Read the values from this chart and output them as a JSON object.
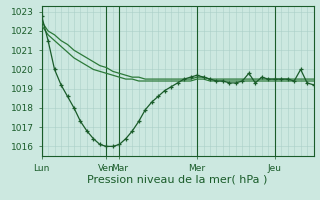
{
  "background_color": "#cce8e0",
  "grid_color": "#aacfc8",
  "line_color_dark": "#1a5c2a",
  "line_color_mid": "#2d7a3a",
  "ylim": [
    1015.5,
    1023.3
  ],
  "yticks": [
    1016,
    1017,
    1018,
    1019,
    1020,
    1021,
    1022,
    1023
  ],
  "xlabel": "Pression niveau de la mer( hPa )",
  "xlabel_fontsize": 8,
  "tick_fontsize": 6.5,
  "day_labels": [
    "Lun",
    "Ven",
    "Mar",
    "Mer",
    "Jeu"
  ],
  "day_positions": [
    0,
    60,
    72,
    144,
    216
  ],
  "total_steps": 252,
  "line_top_x": [
    0,
    6,
    12,
    18,
    24,
    30,
    36,
    42,
    48,
    54,
    60,
    66,
    72,
    78,
    84,
    90,
    96,
    102,
    108,
    114,
    120,
    126,
    132,
    138,
    144,
    150,
    156,
    162,
    168,
    174,
    180,
    186,
    192,
    198,
    204,
    210,
    216,
    222,
    228,
    234,
    240,
    246,
    252
  ],
  "line_top_y": [
    1022.5,
    1022.0,
    1021.8,
    1021.5,
    1021.3,
    1021.0,
    1020.8,
    1020.6,
    1020.4,
    1020.2,
    1020.1,
    1019.9,
    1019.8,
    1019.7,
    1019.6,
    1019.6,
    1019.5,
    1019.5,
    1019.5,
    1019.5,
    1019.5,
    1019.5,
    1019.5,
    1019.5,
    1019.6,
    1019.6,
    1019.5,
    1019.5,
    1019.5,
    1019.5,
    1019.5,
    1019.5,
    1019.5,
    1019.5,
    1019.5,
    1019.5,
    1019.5,
    1019.5,
    1019.5,
    1019.5,
    1019.5,
    1019.5,
    1019.5
  ],
  "line_mid_x": [
    0,
    6,
    12,
    18,
    24,
    30,
    36,
    42,
    48,
    54,
    60,
    66,
    72,
    78,
    84,
    90,
    96,
    102,
    108,
    114,
    120,
    126,
    132,
    138,
    144,
    150,
    156,
    162,
    168,
    174,
    180,
    186,
    192,
    198,
    204,
    210,
    216,
    222,
    228,
    234,
    240,
    246,
    252
  ],
  "line_mid_y": [
    1022.3,
    1021.8,
    1021.5,
    1021.2,
    1020.9,
    1020.6,
    1020.4,
    1020.2,
    1020.0,
    1019.9,
    1019.8,
    1019.7,
    1019.6,
    1019.5,
    1019.5,
    1019.4,
    1019.4,
    1019.4,
    1019.4,
    1019.4,
    1019.4,
    1019.4,
    1019.4,
    1019.4,
    1019.5,
    1019.5,
    1019.4,
    1019.4,
    1019.4,
    1019.4,
    1019.4,
    1019.4,
    1019.4,
    1019.4,
    1019.4,
    1019.4,
    1019.4,
    1019.4,
    1019.4,
    1019.4,
    1019.4,
    1019.4,
    1019.4
  ],
  "line_low_x": [
    0,
    6,
    12,
    18,
    24,
    30,
    36,
    42,
    48,
    54,
    60,
    66,
    72,
    78,
    84,
    90,
    96,
    102,
    108,
    114,
    120,
    126,
    132,
    138,
    144,
    150,
    156,
    162,
    168,
    174,
    180,
    186,
    192,
    198,
    204,
    210,
    216,
    222,
    228,
    234,
    240,
    246,
    252
  ],
  "line_low_y": [
    1022.8,
    1021.5,
    1020.0,
    1019.2,
    1018.6,
    1018.0,
    1017.3,
    1016.8,
    1016.4,
    1016.1,
    1016.0,
    1016.0,
    1016.1,
    1016.4,
    1016.8,
    1017.3,
    1017.9,
    1018.3,
    1018.6,
    1018.9,
    1019.1,
    1019.3,
    1019.5,
    1019.6,
    1019.7,
    1019.6,
    1019.5,
    1019.4,
    1019.4,
    1019.3,
    1019.3,
    1019.4,
    1019.8,
    1019.3,
    1019.6,
    1019.5,
    1019.5,
    1019.5,
    1019.5,
    1019.4,
    1020.0,
    1019.3,
    1019.2
  ]
}
